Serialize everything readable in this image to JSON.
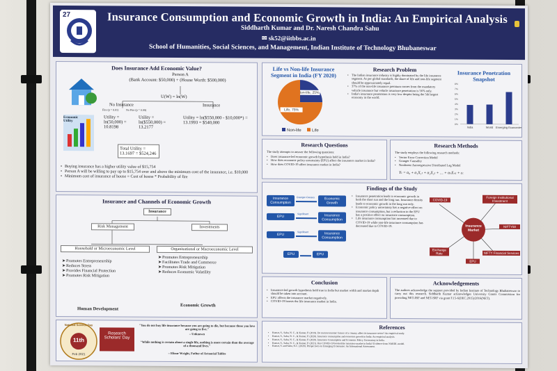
{
  "header": {
    "badge": "27",
    "title": "Insurance Consumption and Economic Growth in India: An Empirical Analysis",
    "authors": "Siddharth Kumar and Dr. Naresh Chandra Sahu",
    "email": "sk52@iitbbs.ac.in",
    "school": "School of Humanities, Social Sciences, and Management, Indian Institute of Technology Bhubaneswar"
  },
  "value": {
    "title": "Does Insurance Add Economic Value?",
    "person": "Person A",
    "person_detail": "(Bank Account: $50,000) + (House Worth: $500,000)",
    "utility_fn": "U(W) = ln(W)",
    "no_insurance": "No Insurance",
    "insurance": "Insurance",
    "fire_yes": "Fire (p = 0.01)",
    "fire_no": "No Fire (p = 0.99)",
    "utility_label": "Economic Utility",
    "u1": "Utility = ln(50,000) = 10.8198",
    "u2": "Utility = ln($550,000) = 13.2177",
    "u3": "Utility = ln($550,000 - $10,000*) = 13.1993 = $540,000",
    "total": "Total Utility = 13.1697 = $524,246",
    "bullets": [
      "Buying insurance has a higher utility value of $15,754",
      "Person A will be willing to pay up to $15,754 over and above the minimum cost of the insurance, i.e. $10,000",
      "Minimum cost of insurance of house = Cost of house * Probability of fire"
    ]
  },
  "channels": {
    "title": "Insurance and Channels of Economic Growth",
    "root": "Insurance",
    "risk": "Risk Management",
    "investments": "Investments",
    "household": "Household or Microeconomic Level",
    "org": "Organisational or Macroeconomic Level",
    "left_items": [
      "Promotes Entrepreneurship",
      "Reduces Stress",
      "Provides Financial Protection",
      "Promotes Risk Mitigation"
    ],
    "right_items": [
      "Promotes Entrepreneurship",
      "Facilitates Trade and Commerce",
      "Promotes Risk Mitigation",
      "Reduces Economic Volatility"
    ],
    "human": "Human Development",
    "growth": "Economic Growth"
  },
  "footer_left": {
    "badge_top": "National Science Day",
    "badge_day": "11th",
    "badge_date": "Feb 2021",
    "scholars": "Research Scholars' Day",
    "quote1": "\"You do not buy life insurance because you are going to die, but because those you love are going to live.\"",
    "quote1_author": "– Unknown",
    "quote2": "\"While nothing is certain about a single life, nothing is more certain than the average of a thousand lives.\"",
    "quote2_author": "– Elizur Wright, Father of Actuarial Tables"
  },
  "problem": {
    "pie_title": "Life vs Non-life Insurance Segment in India (FY 2020)",
    "pie_labels": [
      "Non-life, 25%",
      "Life, 75%"
    ],
    "legend": [
      "Non-life",
      "Life"
    ],
    "title": "Research Problem",
    "bullets": [
      "The Indian insurance industry is highly dominated by the life insurance segment. As per global standards, the share of life and non-life segment should be approximately equal.",
      "37% of the non-life insurance premium comes from the mandatory vehicle insurance but vehicle insurance penetration is 56% only.",
      "India's insurance penetration is very low despite being the 5th largest economy in the world."
    ],
    "bar_title": "Insurance Penetration Snapshot",
    "bar_categories": [
      "India",
      "World",
      "Emerging Economies"
    ],
    "bar_ticks": [
      "8%",
      "7%",
      "6%",
      "5%",
      "4%",
      "3%",
      "2%",
      "1%",
      "0%"
    ]
  },
  "chart_data": [
    {
      "type": "pie",
      "title": "Life vs Non-life Insurance Segment in India (FY 2020)",
      "categories": [
        "Non-life",
        "Life"
      ],
      "values": [
        25,
        75
      ]
    },
    {
      "type": "bar",
      "title": "Insurance Penetration Snapshot",
      "categories": [
        "India",
        "World",
        "Emerging Economies"
      ],
      "values": [
        3.8,
        3.9,
        6.4
      ],
      "ylim": [
        0,
        8
      ]
    }
  ],
  "questions": {
    "title": "Research Questions",
    "intro": "The study attempts to answer the following questions:",
    "items": [
      "Does insurance-led economic growth hypothesis hold in India?",
      "How does economic policy uncertainty (EPU) affect the insurance market in India?",
      "How does COVID-19 affect insurance market in India?"
    ]
  },
  "methods": {
    "title": "Research Methods",
    "intro": "The study employs the following research methods:",
    "items": [
      "Vector Error Correction Model",
      "Granger Causality",
      "Nonlinear Autoregressive Distributed Lag Model"
    ],
    "equation": "Yₜ = α₀ + α₁X₁ₜ + α₂X₂ₜ + … + αₙXₙₜ + εₜ"
  },
  "findings": {
    "title": "Findings of the Study",
    "flow": [
      [
        "Insurance Consumption",
        "Granger-Causes",
        "Economic Growth"
      ],
      [
        "EPU",
        "Significant",
        "Insurance Consumption"
      ],
      [
        "EPU",
        "Significant",
        "Insurance Consumption"
      ],
      [
        "EPU",
        "",
        "EPU"
      ]
    ],
    "bullets": [
      "Insurance penetration leads to economic growth in both the short run and the long run. Insurance density leads to economic growth in the long run only.",
      "Economic policy uncertainty has a negative effect on insurance consumption, but a reduction in the EPU has a positive effect on insurance consumption.",
      "Life insurance consumption has increased due to COVID-19 while non-life insurance consumption has decreased due to COVID-19."
    ],
    "center": "Insurance Market",
    "nodes": [
      "COVID-19",
      "Foreign Institutional Investment",
      "NIFTY50",
      "NIFTY Financial Services",
      "Exchange Rate",
      "EPU"
    ]
  },
  "conclusion": {
    "title": "Conclusion",
    "items": [
      "Insurance-led growth hypothesis hold true in India but market width and market depth should be taken into account.",
      "EPU affects the insurance market negatively.",
      "COVID-19 boosts the life insurance market in India."
    ]
  },
  "ack": {
    "title": "Acknowledgements",
    "text": "The authors acknowledge the support provided by Indian Institute of Technology Bhubaneswar to carry out this research. Siddharth Kumar acknowledges University Grants Commission for providing NET-JRF and NET-SRF via grant F.15-6(DEC.2015)/2016(NET)."
  },
  "references": {
    "title": "References",
    "items": [
      "Kumar, S., Sahu, N. C., & Kumar, P. (2019). Do macroeconomic factors of a country affect its insurance sector? An empirical study.",
      "Kumar, S., Sahu, N. C., & Kumar, P. (2020). Insurance consumption and economic growth in India: An empirical analysis.",
      "Kumar, S., Sahu, N. C., & Kumar, P. (2020). Insurance Consumption and Economic Policy Uncertainty in India.",
      "Kumar, S., Sahu, N. C., & Kumar, P. (2021). Has COVID-19 boosted the insurance market in India? Evidence from NARDL model.",
      "Kumar, S. and Sahu, N.C. (2020). Perspectives on Emerging Economies: An International Assessment."
    ]
  }
}
